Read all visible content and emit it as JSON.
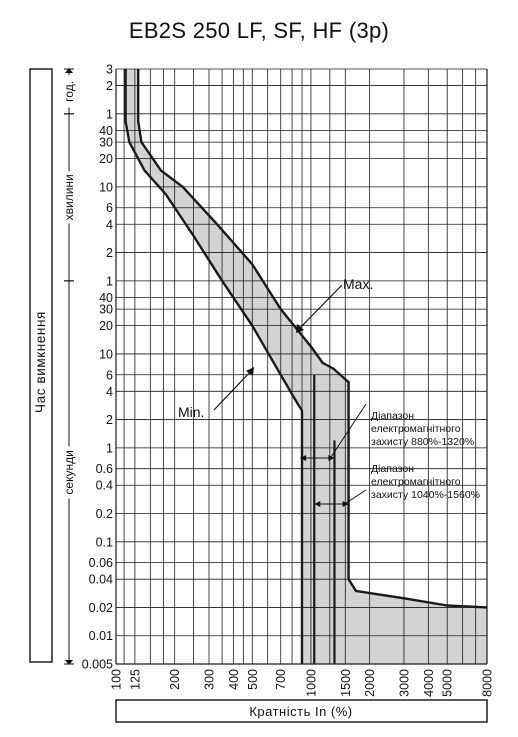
{
  "title": "EB2S 250 LF, SF, HF (3p)",
  "chart_data": {
    "type": "line",
    "title": "EB2S 250 LF, SF, HF (3p)",
    "x_scale": "log",
    "y_scale": "log",
    "xlabel": "Кратність In (%)",
    "ylabel": "Час вимкнення",
    "xlim": [
      100,
      8000
    ],
    "ylim_seconds": [
      0.005,
      10800
    ],
    "grid": true,
    "x_ticks": [
      {
        "value": 100,
        "label": "100"
      },
      {
        "value": 125,
        "label": "125"
      },
      {
        "value": 200,
        "label": "200"
      },
      {
        "value": 300,
        "label": "300"
      },
      {
        "value": 400,
        "label": "400"
      },
      {
        "value": 500,
        "label": "500"
      },
      {
        "value": 700,
        "label": "700"
      },
      {
        "value": 1000,
        "label": "1000"
      },
      {
        "value": 1500,
        "label": "1500"
      },
      {
        "value": 2000,
        "label": "2000"
      },
      {
        "value": 3000,
        "label": "3000"
      },
      {
        "value": 4000,
        "label": "4000"
      },
      {
        "value": 5000,
        "label": "5000"
      },
      {
        "value": 8000,
        "label": "8000"
      }
    ],
    "y_ticks": [
      {
        "value_s": 10800,
        "label": "3"
      },
      {
        "value_s": 7200,
        "label": "2"
      },
      {
        "value_s": 3600,
        "label": "1"
      },
      {
        "value_s": 2400,
        "label": "40"
      },
      {
        "value_s": 1800,
        "label": "30"
      },
      {
        "value_s": 1200,
        "label": "20"
      },
      {
        "value_s": 600,
        "label": "10"
      },
      {
        "value_s": 360,
        "label": "6"
      },
      {
        "value_s": 240,
        "label": "4"
      },
      {
        "value_s": 120,
        "label": "2"
      },
      {
        "value_s": 60,
        "label": "1"
      },
      {
        "value_s": 40,
        "label": "40"
      },
      {
        "value_s": 30,
        "label": "30"
      },
      {
        "value_s": 20,
        "label": "20"
      },
      {
        "value_s": 10,
        "label": "10"
      },
      {
        "value_s": 6,
        "label": "6"
      },
      {
        "value_s": 4,
        "label": "4"
      },
      {
        "value_s": 2,
        "label": "2"
      },
      {
        "value_s": 1,
        "label": "1"
      },
      {
        "value_s": 0.6,
        "label": "0.6"
      },
      {
        "value_s": 0.4,
        "label": "0.4"
      },
      {
        "value_s": 0.2,
        "label": "0.2"
      },
      {
        "value_s": 0.1,
        "label": "0.1"
      },
      {
        "value_s": 0.06,
        "label": "0.06"
      },
      {
        "value_s": 0.04,
        "label": "0.04"
      },
      {
        "value_s": 0.02,
        "label": "0.02"
      },
      {
        "value_s": 0.01,
        "label": "0.01"
      },
      {
        "value_s": 0.005,
        "label": "0.005"
      }
    ],
    "time_bands": [
      {
        "label": "год.",
        "from_s": 3600,
        "to_s": 10800
      },
      {
        "label": "хвилини",
        "from_s": 60,
        "to_s": 3600
      },
      {
        "label": "секунди",
        "from_s": 0.005,
        "to_s": 60
      }
    ],
    "series": [
      {
        "name": "Min.",
        "points": [
          [
            112,
            10800
          ],
          [
            112,
            3000
          ],
          [
            117,
            1800
          ],
          [
            140,
            900
          ],
          [
            180,
            500
          ],
          [
            250,
            180
          ],
          [
            350,
            60
          ],
          [
            500,
            20
          ],
          [
            700,
            6
          ],
          [
            850,
            3
          ],
          [
            900,
            2.5
          ],
          [
            900,
            0.005
          ]
        ]
      },
      {
        "name": "Max.",
        "points": [
          [
            130,
            10800
          ],
          [
            130,
            3000
          ],
          [
            135,
            1800
          ],
          [
            170,
            900
          ],
          [
            220,
            600
          ],
          [
            330,
            240
          ],
          [
            500,
            90
          ],
          [
            700,
            30
          ],
          [
            1000,
            12
          ],
          [
            1150,
            8
          ],
          [
            1300,
            7
          ],
          [
            1560,
            5
          ],
          [
            1560,
            0.04
          ],
          [
            1700,
            0.03
          ],
          [
            3000,
            0.025
          ],
          [
            5000,
            0.021
          ],
          [
            8000,
            0.02
          ]
        ]
      }
    ],
    "annotations": [
      {
        "text": "Max."
      },
      {
        "text": "Min."
      },
      {
        "text_lines": [
          "Діапазон",
          "електромагнітного",
          "захисту 880%-1320%"
        ],
        "range": [
          880,
          1320
        ]
      },
      {
        "text_lines": [
          "Діапазон",
          "електромагнітного",
          "захисту 1040%-1560%"
        ],
        "range": [
          1040,
          1560
        ]
      }
    ],
    "colors": {
      "band_fill": "#d3d3d3",
      "curve": "#1a1a1a",
      "grid": "#1a1a1a"
    }
  }
}
